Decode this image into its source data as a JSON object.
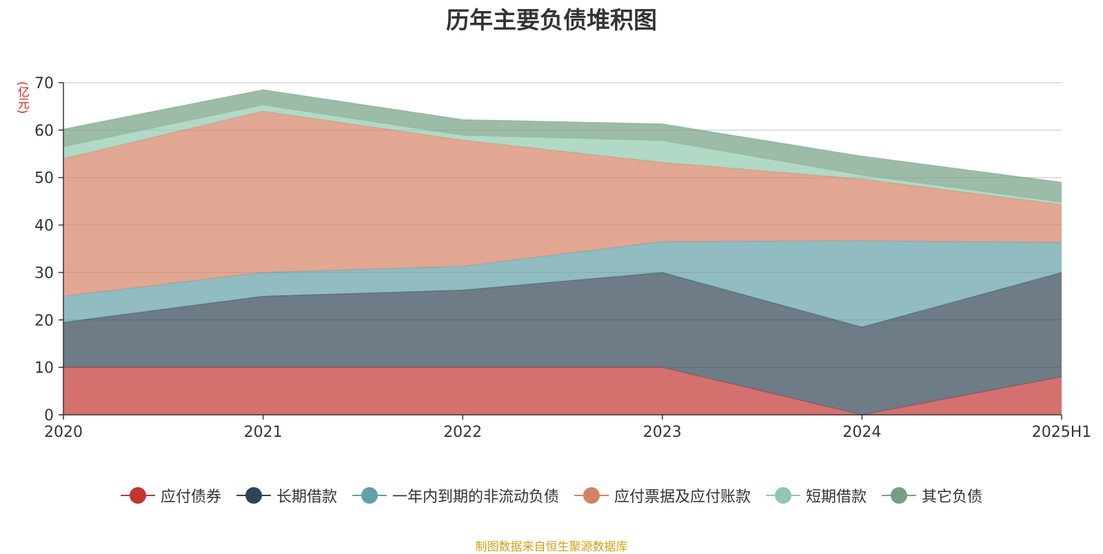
{
  "chart_data": {
    "type": "area",
    "stacked": true,
    "title": "历年主要负债堆积图",
    "ylabel": "(亿元)",
    "xlabel": "",
    "categories": [
      "2020",
      "2021",
      "2022",
      "2023",
      "2024",
      "2025H1"
    ],
    "ylim": [
      0,
      70
    ],
    "yticks": [
      0,
      10,
      20,
      30,
      40,
      50,
      60,
      70
    ],
    "grid": true,
    "legend_position": "bottom",
    "series": [
      {
        "name": "应付债券",
        "color": "#c23531",
        "values": [
          10,
          10,
          10,
          10,
          0,
          8
        ]
      },
      {
        "name": "长期借款",
        "color": "#2f4554",
        "values": [
          9.5,
          15,
          16.3,
          20,
          18.5,
          22
        ]
      },
      {
        "name": "一年内到期的非流动负债",
        "color": "#61a0a8",
        "values": [
          5.5,
          5,
          5,
          6.5,
          18.2,
          6.3
        ]
      },
      {
        "name": "应付票据及应付账款",
        "color": "#d48265",
        "values": [
          29,
          34,
          26.6,
          16.7,
          13,
          8
        ]
      },
      {
        "name": "短期借款",
        "color": "#91c7ae",
        "values": [
          2.5,
          1.3,
          1,
          4.6,
          0.8,
          0.5
        ]
      },
      {
        "name": "其它负债",
        "color": "#749f83",
        "values": [
          3.7,
          3.2,
          3.3,
          3.5,
          4,
          4.2
        ]
      }
    ]
  },
  "source_text": "制图数据来自恒生聚源数据库"
}
